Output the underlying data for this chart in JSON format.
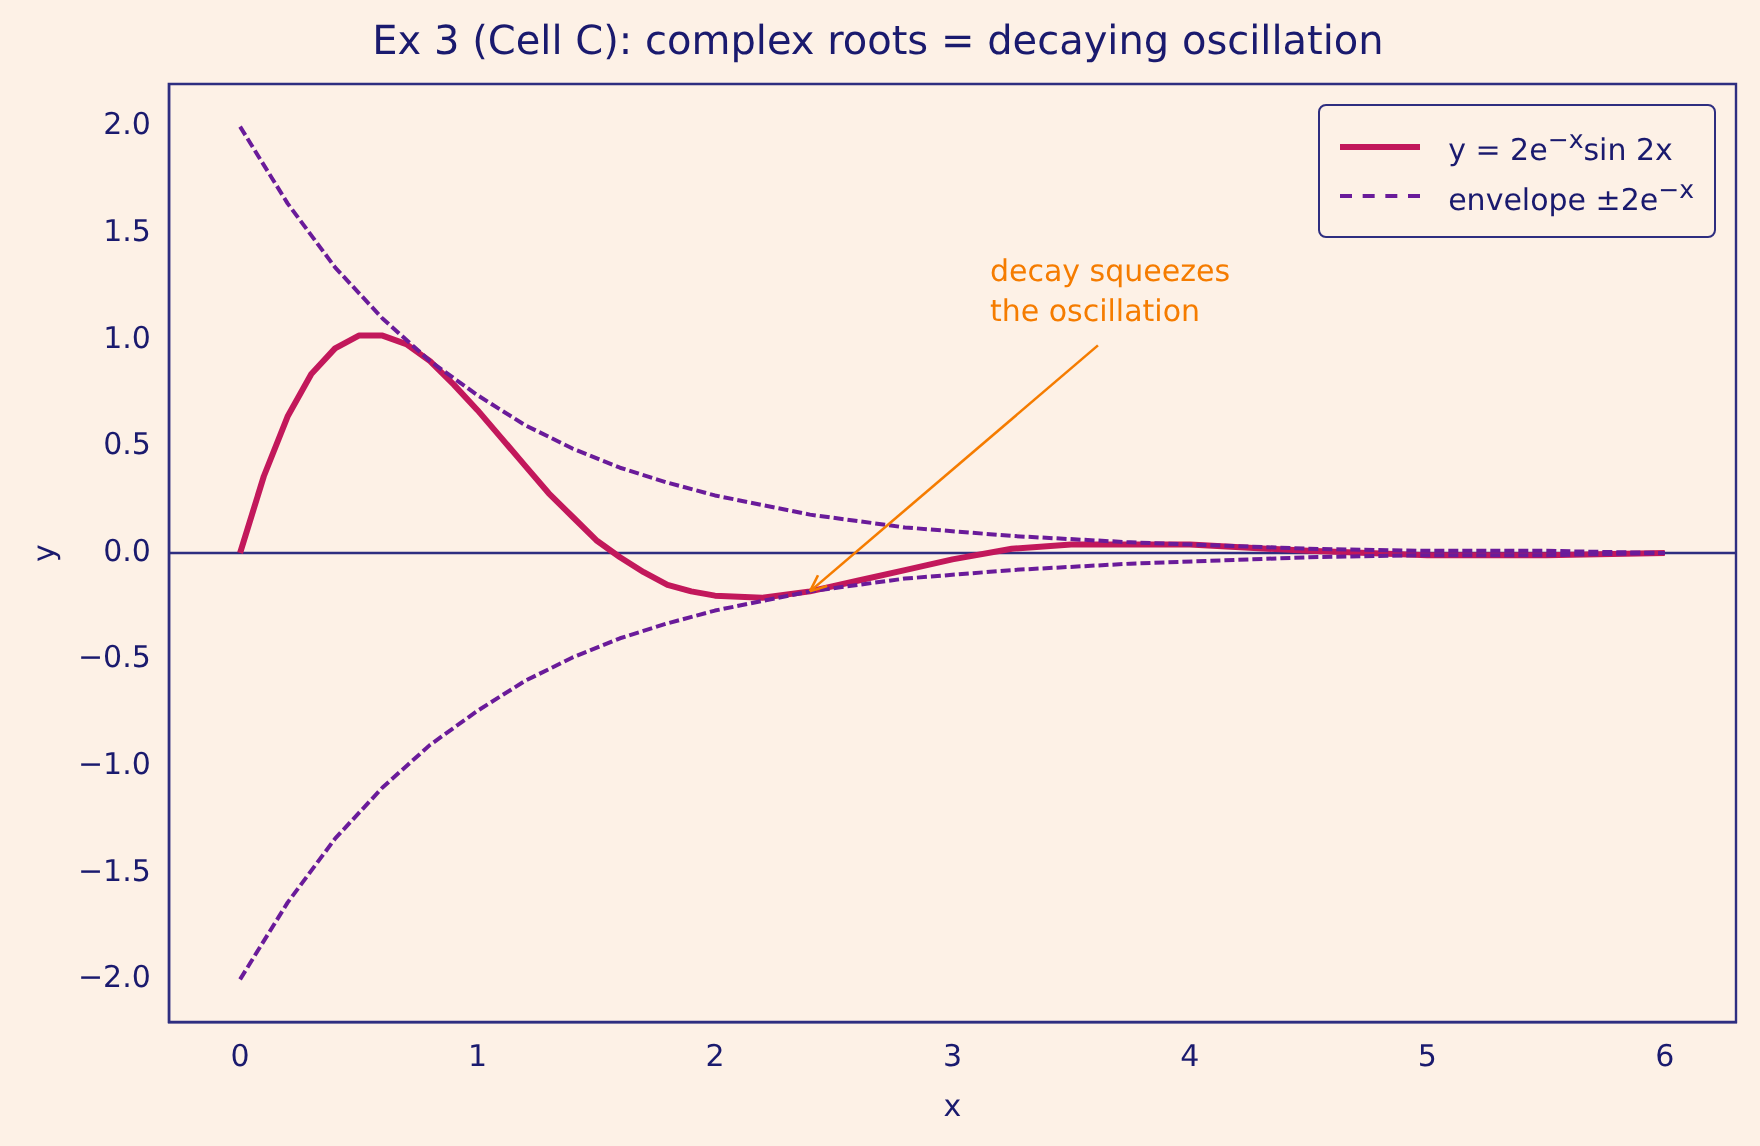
{
  "chart_data": {
    "type": "line",
    "title": "Ex 3 (Cell C): complex roots = decaying oscillation",
    "xlabel": "x",
    "ylabel": "y",
    "xlim": [
      -0.3,
      6.3
    ],
    "ylim": [
      -2.2,
      2.2
    ],
    "xticks": [
      0,
      1,
      2,
      3,
      4,
      5,
      6
    ],
    "yticks": [
      {
        "value": -2,
        "label": "−2.0"
      },
      {
        "value": -1.5,
        "label": "−1.5"
      },
      {
        "value": -1,
        "label": "−1.0"
      },
      {
        "value": -0.5,
        "label": "−0.5"
      },
      {
        "value": 0,
        "label": "0.0"
      },
      {
        "value": 0.5,
        "label": "0.5"
      },
      {
        "value": 1,
        "label": "1.0"
      },
      {
        "value": 1.5,
        "label": "1.5"
      },
      {
        "value": 2,
        "label": "2.0"
      }
    ],
    "grid": false,
    "legend": "top right",
    "marker": "none",
    "series": [
      {
        "name": "y = 2e$^{−x}$sin 2x",
        "color": "#c2185b",
        "line_style": "solid",
        "x": [
          0,
          0.1,
          0.2,
          0.3,
          0.4,
          0.5,
          0.6,
          0.7,
          0.8,
          0.9,
          1,
          1.1,
          1.2,
          1.3,
          1.4,
          1.5,
          1.6,
          1.7,
          1.8,
          1.9,
          2,
          2.2,
          2.4,
          2.6,
          2.8,
          3,
          3.25,
          3.5,
          3.75,
          4,
          4.5,
          5,
          5.5,
          6
        ],
        "values": [
          0,
          0.36,
          0.64,
          0.84,
          0.96,
          1.02,
          1.02,
          0.98,
          0.9,
          0.79,
          0.67,
          0.54,
          0.41,
          0.28,
          0.17,
          0.06,
          -0.02,
          -0.09,
          -0.15,
          -0.18,
          -0.2,
          -0.21,
          -0.18,
          -0.13,
          -0.08,
          -0.03,
          0.02,
          0.04,
          0.04,
          0.04,
          0.01,
          -0.01,
          -0.01,
          0
        ]
      },
      {
        "name": "envelope ±2e$^{−x}$",
        "color": "#6a1b9a",
        "line_style": "dashed",
        "x": [
          0,
          0.2,
          0.4,
          0.6,
          0.8,
          1,
          1.2,
          1.4,
          1.6,
          1.8,
          2,
          2.4,
          2.8,
          3.25,
          3.75,
          4.5,
          5,
          5.5,
          6
        ],
        "values": [
          2,
          1.64,
          1.34,
          1.1,
          0.9,
          0.74,
          0.6,
          0.49,
          0.4,
          0.33,
          0.27,
          0.18,
          0.12,
          0.08,
          0.05,
          0.02,
          0.01,
          0.01,
          0
        ]
      },
      {
        "color": "#6a1b9a",
        "line_style": "dashed",
        "x": [
          0,
          0.2,
          0.4,
          0.6,
          0.8,
          1,
          1.2,
          1.4,
          1.6,
          1.8,
          2,
          2.4,
          2.8,
          3.25,
          3.75,
          4.5,
          5,
          5.5,
          6
        ],
        "values": [
          -2,
          -1.64,
          -1.34,
          -1.1,
          -0.9,
          -0.74,
          -0.6,
          -0.49,
          -0.4,
          -0.33,
          -0.27,
          -0.18,
          -0.12,
          -0.08,
          -0.05,
          -0.02,
          -0.01,
          -0.01,
          0
        ]
      }
    ],
    "ref_lines": [
      {
        "axis": "y",
        "value": 0,
        "color": "#2e2e80"
      }
    ],
    "annotations": [
      {
        "text": "decay squeezes\nthe oscillation",
        "x": 2.4,
        "y": -0.18
      }
    ]
  }
}
